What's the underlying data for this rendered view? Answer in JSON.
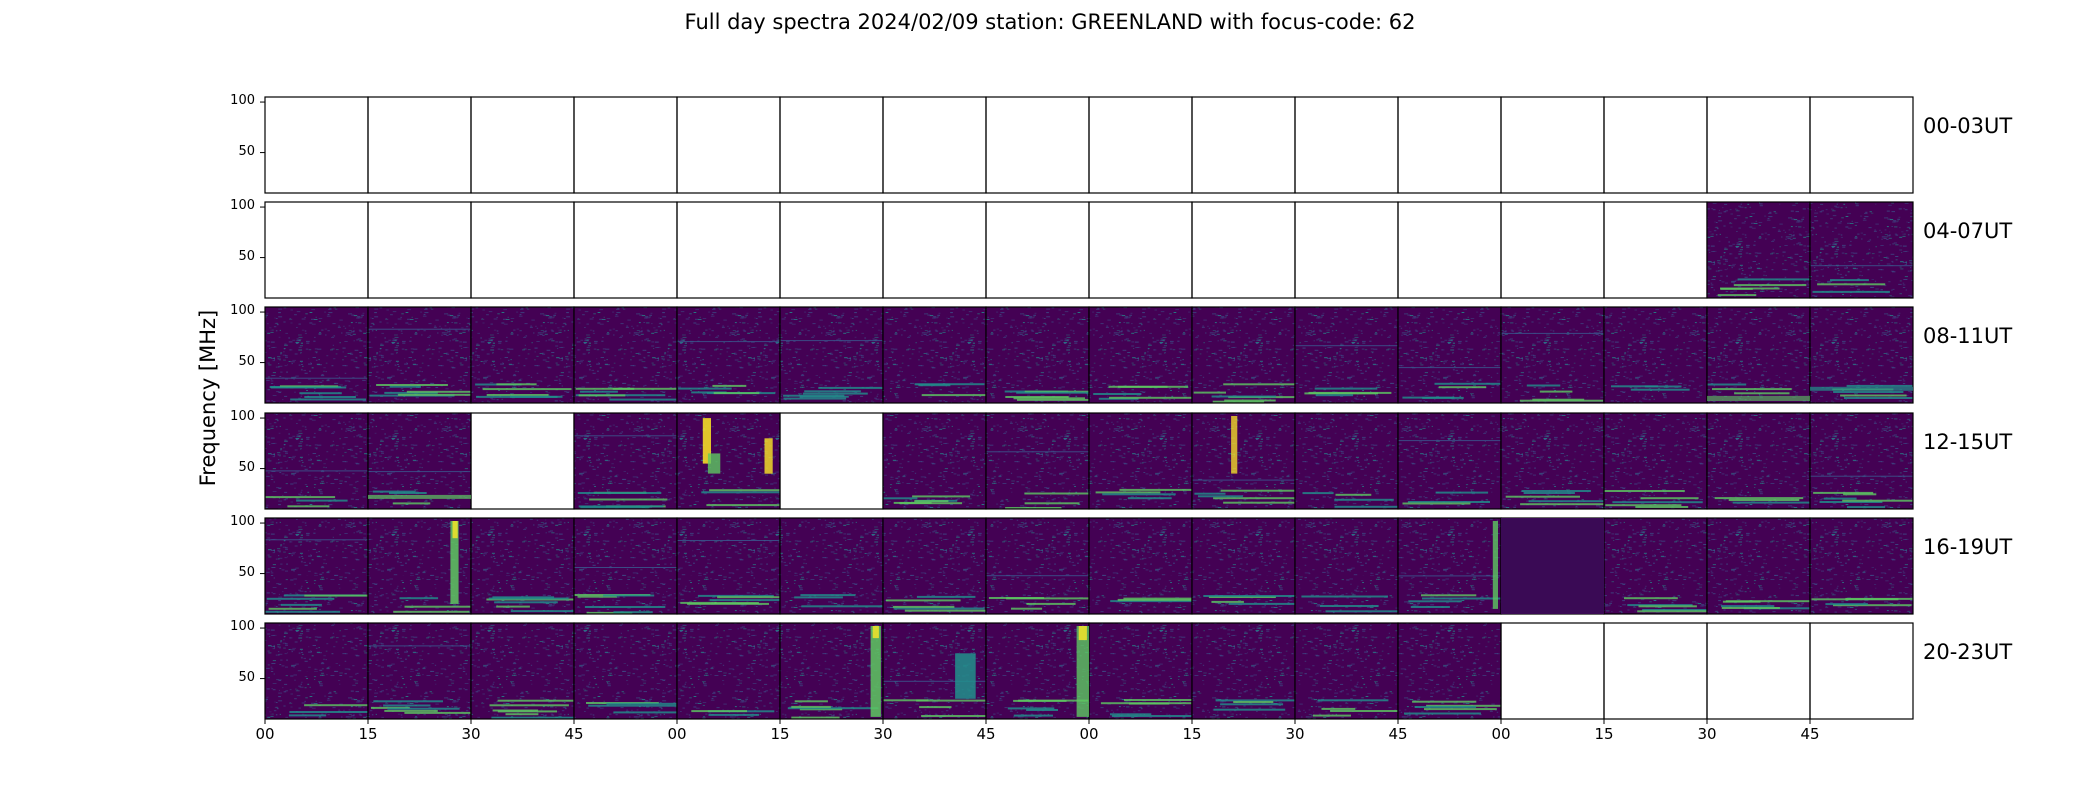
{
  "chart_data": {
    "type": "heatmap",
    "title": "Full day spectra 2024/02/09 station: GREENLAND with focus-code: 62",
    "ylabel": "Frequency [MHz]",
    "ylim": [
      10,
      105
    ],
    "yticks": [
      50,
      100
    ],
    "xticks": [
      "00",
      "15",
      "30",
      "45",
      "00",
      "15",
      "30",
      "45",
      "00",
      "15",
      "30",
      "45",
      "00",
      "15",
      "30",
      "45"
    ],
    "rows": [
      {
        "label": "00-03UT",
        "hours": [
          0,
          1,
          2,
          3
        ],
        "panels": [
          0,
          0,
          0,
          0,
          0,
          0,
          0,
          0,
          0,
          0,
          0,
          0,
          0,
          0,
          0,
          0
        ]
      },
      {
        "label": "04-07UT",
        "hours": [
          4,
          5,
          6,
          7
        ],
        "panels": [
          0,
          0,
          0,
          0,
          0,
          0,
          0,
          0,
          0,
          0,
          0,
          0,
          0,
          0,
          1,
          1
        ]
      },
      {
        "label": "08-11UT",
        "hours": [
          8,
          9,
          10,
          11
        ],
        "panels": [
          1,
          1,
          1,
          1,
          1,
          1,
          1,
          1,
          1,
          1,
          1,
          1,
          1,
          1,
          1,
          1
        ]
      },
      {
        "label": "12-15UT",
        "hours": [
          12,
          13,
          14,
          15
        ],
        "panels": [
          1,
          1,
          0,
          1,
          1,
          0,
          1,
          1,
          1,
          1,
          1,
          1,
          1,
          1,
          1,
          1
        ]
      },
      {
        "label": "16-19UT",
        "hours": [
          16,
          17,
          18,
          19
        ],
        "panels": [
          1,
          1,
          1,
          1,
          1,
          1,
          1,
          1,
          1,
          1,
          1,
          1,
          1,
          1,
          1,
          1
        ]
      },
      {
        "label": "20-23UT",
        "hours": [
          20,
          21,
          22,
          23
        ],
        "panels": [
          1,
          1,
          1,
          1,
          1,
          1,
          1,
          1,
          1,
          1,
          1,
          1,
          0,
          0,
          0,
          0
        ]
      }
    ],
    "panels_per_row": 16,
    "minutes_per_panel": 15,
    "colormap": "viridis",
    "colors": {
      "background": "#440154",
      "mid": "#3b528b",
      "teal": "#21918c",
      "green": "#5ec962",
      "bright": "#fde725"
    }
  }
}
